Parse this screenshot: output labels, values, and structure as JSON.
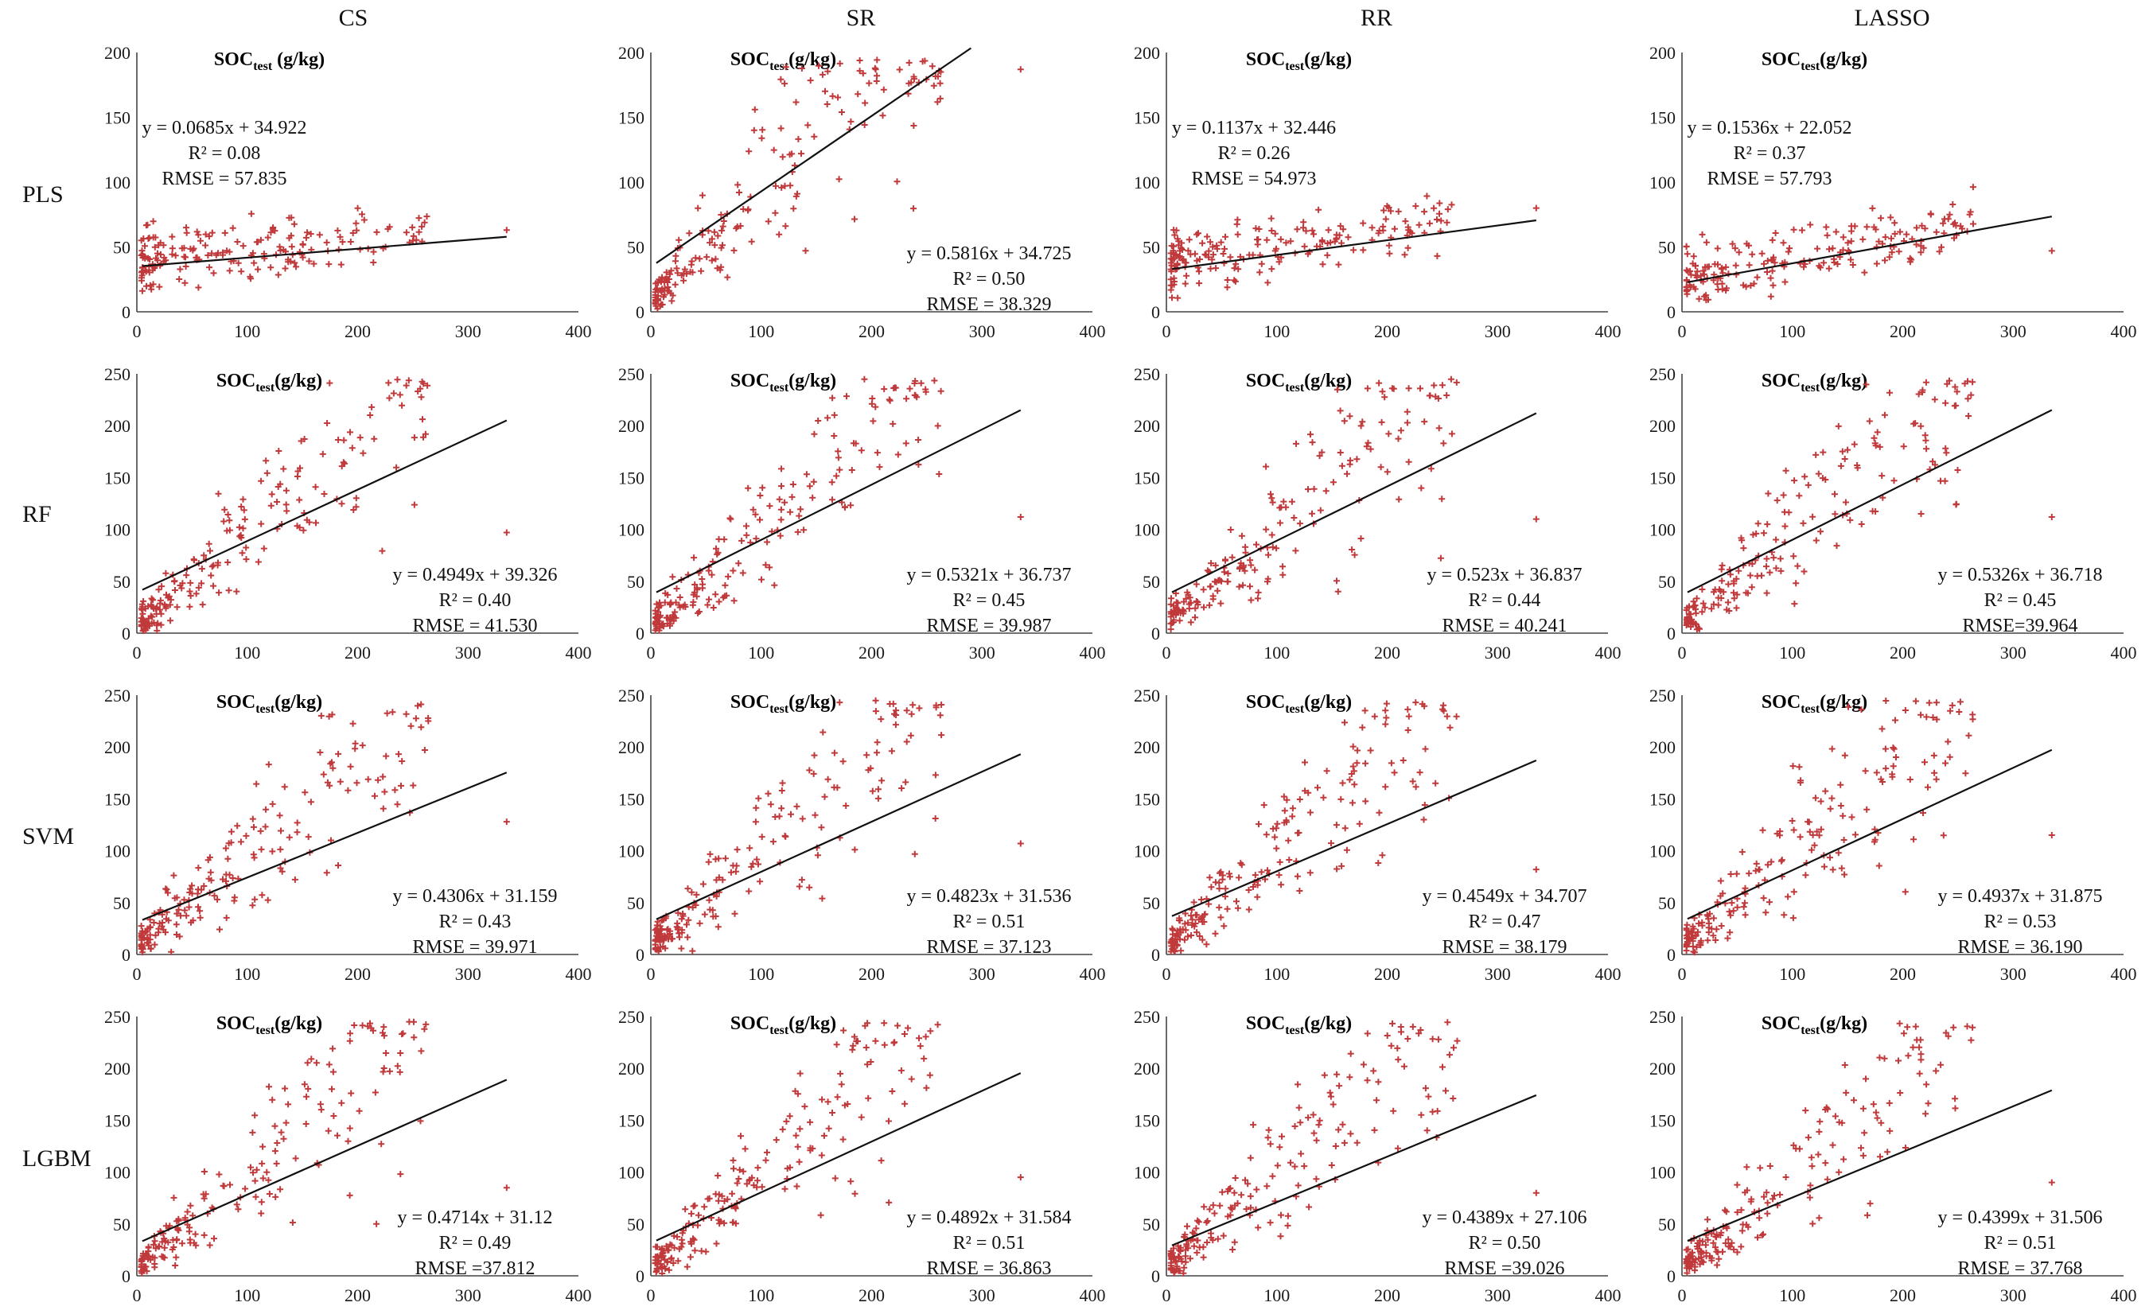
{
  "figure": {
    "columns": [
      "CS",
      "SR",
      "RR",
      "LASSO"
    ],
    "rows": [
      "PLS",
      "RF",
      "SVM",
      "LGBM"
    ],
    "colors": {
      "points": "#c0393b",
      "fit_line": "#111111",
      "axis": "#444444"
    }
  },
  "chart_data": [
    {
      "type": "scatter",
      "row": "PLS",
      "column": "CS",
      "title": "SOC",
      "title_sub": "test",
      "title_suffix": " (g/kg)",
      "xlim": [
        0,
        400
      ],
      "ylim": [
        0,
        200
      ],
      "xticks": [
        0,
        100,
        200,
        300,
        400
      ],
      "yticks": [
        0,
        50,
        100,
        150,
        200
      ],
      "fit": {
        "slope": 0.0685,
        "intercept": 34.922
      },
      "x_end": 335,
      "annotation": [
        "y = 0.0685x + 34.922",
        "R² = 0.08",
        "RMSE = 57.835"
      ],
      "annotation_pos": "top-left",
      "outlier": [
        335,
        63
      ]
    },
    {
      "type": "scatter",
      "row": "PLS",
      "column": "SR",
      "title": "SOC",
      "title_sub": "test",
      "title_suffix": "(g/kg)",
      "xlim": [
        0,
        400
      ],
      "ylim": [
        0,
        200
      ],
      "xticks": [
        0,
        100,
        200,
        300,
        400
      ],
      "yticks": [
        0,
        50,
        100,
        150,
        200
      ],
      "fit": {
        "slope": 0.5816,
        "intercept": 34.725
      },
      "x_end": 290,
      "annotation": [
        "y = 0.5816x + 34.725",
        "R² = 0.50",
        "RMSE = 38.329"
      ],
      "annotation_pos": "bottom-right",
      "outlier": [
        335,
        187
      ]
    },
    {
      "type": "scatter",
      "row": "PLS",
      "column": "RR",
      "title": "SOC",
      "title_sub": "test",
      "title_suffix": "(g/kg)",
      "xlim": [
        0,
        400
      ],
      "ylim": [
        0,
        200
      ],
      "xticks": [
        0,
        100,
        200,
        300,
        400
      ],
      "yticks": [
        0,
        50,
        100,
        150,
        200
      ],
      "fit": {
        "slope": 0.1137,
        "intercept": 32.446
      },
      "x_end": 335,
      "annotation": [
        "y = 0.1137x + 32.446",
        "R² = 0.26",
        "RMSE = 54.973"
      ],
      "annotation_pos": "top-left",
      "outlier": [
        335,
        80
      ]
    },
    {
      "type": "scatter",
      "row": "PLS",
      "column": "LASSO",
      "title": "SOC",
      "title_sub": "test",
      "title_suffix": "(g/kg)",
      "xlim": [
        0,
        400
      ],
      "ylim": [
        0,
        200
      ],
      "xticks": [
        0,
        100,
        200,
        300,
        400
      ],
      "yticks": [
        0,
        50,
        100,
        150,
        200
      ],
      "fit": {
        "slope": 0.1536,
        "intercept": 22.052
      },
      "x_end": 335,
      "annotation": [
        "y = 0.1536x + 22.052",
        "R² = 0.37",
        "RMSE = 57.793"
      ],
      "annotation_pos": "top-left",
      "outlier": [
        335,
        47
      ]
    },
    {
      "type": "scatter",
      "row": "RF",
      "column": "CS",
      "title": "SOC",
      "title_sub": "test",
      "title_suffix": "(g/kg)",
      "xlim": [
        0,
        400
      ],
      "ylim": [
        0,
        250
      ],
      "xticks": [
        0,
        100,
        200,
        300,
        400
      ],
      "yticks": [
        0,
        50,
        100,
        150,
        200,
        250
      ],
      "fit": {
        "slope": 0.4949,
        "intercept": 39.326
      },
      "x_end": 335,
      "annotation": [
        "y = 0.4949x + 39.326",
        "R² = 0.40",
        "RMSE = 41.530"
      ],
      "annotation_pos": "bottom-right",
      "outlier": [
        335,
        97
      ]
    },
    {
      "type": "scatter",
      "row": "RF",
      "column": "SR",
      "title": "SOC",
      "title_sub": "test",
      "title_suffix": "(g/kg)",
      "xlim": [
        0,
        400
      ],
      "ylim": [
        0,
        250
      ],
      "xticks": [
        0,
        100,
        200,
        300,
        400
      ],
      "yticks": [
        0,
        50,
        100,
        150,
        200,
        250
      ],
      "fit": {
        "slope": 0.5321,
        "intercept": 36.737
      },
      "x_end": 335,
      "annotation": [
        "y = 0.5321x + 36.737",
        "R² = 0.45",
        "RMSE = 39.987"
      ],
      "annotation_pos": "bottom-right",
      "outlier": [
        335,
        112
      ]
    },
    {
      "type": "scatter",
      "row": "RF",
      "column": "RR",
      "title": "SOC",
      "title_sub": "test",
      "title_suffix": "(g/kg)",
      "xlim": [
        0,
        400
      ],
      "ylim": [
        0,
        250
      ],
      "xticks": [
        0,
        100,
        200,
        300,
        400
      ],
      "yticks": [
        0,
        50,
        100,
        150,
        200,
        250
      ],
      "fit": {
        "slope": 0.523,
        "intercept": 36.837
      },
      "x_end": 335,
      "annotation": [
        "y = 0.523x + 36.837",
        "R² = 0.44",
        "RMSE = 40.241"
      ],
      "annotation_pos": "bottom-right",
      "outlier": [
        335,
        110
      ]
    },
    {
      "type": "scatter",
      "row": "RF",
      "column": "LASSO",
      "title": "SOC",
      "title_sub": "test",
      "title_suffix": "(g/kg)",
      "xlim": [
        0,
        400
      ],
      "ylim": [
        0,
        250
      ],
      "xticks": [
        0,
        100,
        200,
        300,
        400
      ],
      "yticks": [
        0,
        50,
        100,
        150,
        200,
        250
      ],
      "fit": {
        "slope": 0.5326,
        "intercept": 36.718
      },
      "x_end": 335,
      "annotation": [
        "y = 0.5326x + 36.718",
        "R² = 0.45",
        "RMSE=39.964"
      ],
      "annotation_pos": "bottom-right",
      "outlier": [
        335,
        112
      ]
    },
    {
      "type": "scatter",
      "row": "SVM",
      "column": "CS",
      "title": "SOC",
      "title_sub": "test",
      "title_suffix": "(g/kg)",
      "xlim": [
        0,
        400
      ],
      "ylim": [
        0,
        250
      ],
      "xticks": [
        0,
        100,
        200,
        300,
        400
      ],
      "yticks": [
        0,
        50,
        100,
        150,
        200,
        250
      ],
      "fit": {
        "slope": 0.4306,
        "intercept": 31.159
      },
      "x_end": 335,
      "annotation": [
        "y = 0.4306x + 31.159",
        "R² = 0.43",
        "RMSE = 39.971"
      ],
      "annotation_pos": "bottom-right",
      "outlier": [
        335,
        128
      ]
    },
    {
      "type": "scatter",
      "row": "SVM",
      "column": "SR",
      "title": "SOC",
      "title_sub": "test",
      "title_suffix": "(g/kg)",
      "xlim": [
        0,
        400
      ],
      "ylim": [
        0,
        250
      ],
      "xticks": [
        0,
        100,
        200,
        300,
        400
      ],
      "yticks": [
        0,
        50,
        100,
        150,
        200,
        250
      ],
      "fit": {
        "slope": 0.4823,
        "intercept": 31.536
      },
      "x_end": 335,
      "annotation": [
        "y = 0.4823x + 31.536",
        "R² = 0.51",
        "RMSE = 37.123"
      ],
      "annotation_pos": "bottom-right",
      "outlier": [
        335,
        107
      ]
    },
    {
      "type": "scatter",
      "row": "SVM",
      "column": "RR",
      "title": "SOC",
      "title_sub": "test",
      "title_suffix": "(g/kg)",
      "xlim": [
        0,
        400
      ],
      "ylim": [
        0,
        250
      ],
      "xticks": [
        0,
        100,
        200,
        300,
        400
      ],
      "yticks": [
        0,
        50,
        100,
        150,
        200,
        250
      ],
      "fit": {
        "slope": 0.4549,
        "intercept": 34.707
      },
      "x_end": 335,
      "annotation": [
        "y = 0.4549x + 34.707",
        "R² = 0.47",
        "RMSE = 38.179"
      ],
      "annotation_pos": "bottom-right",
      "outlier": [
        335,
        82
      ]
    },
    {
      "type": "scatter",
      "row": "SVM",
      "column": "LASSO",
      "title": "SOC",
      "title_sub": "test",
      "title_suffix": "(g/kg)",
      "xlim": [
        0,
        400
      ],
      "ylim": [
        0,
        250
      ],
      "xticks": [
        0,
        100,
        200,
        300,
        400
      ],
      "yticks": [
        0,
        50,
        100,
        150,
        200,
        250
      ],
      "fit": {
        "slope": 0.4937,
        "intercept": 31.875
      },
      "x_end": 335,
      "annotation": [
        "y = 0.4937x + 31.875",
        "R² = 0.53",
        "RMSE = 36.190"
      ],
      "annotation_pos": "bottom-right",
      "outlier": [
        335,
        115
      ]
    },
    {
      "type": "scatter",
      "row": "LGBM",
      "column": "CS",
      "title": "SOC",
      "title_sub": "test",
      "title_suffix": "(g/kg)",
      "xlim": [
        0,
        400
      ],
      "ylim": [
        0,
        250
      ],
      "xticks": [
        0,
        100,
        200,
        300,
        400
      ],
      "yticks": [
        0,
        50,
        100,
        150,
        200,
        250
      ],
      "fit": {
        "slope": 0.4714,
        "intercept": 31.12
      },
      "x_end": 335,
      "annotation": [
        "y = 0.4714x + 31.12",
        "R² = 0.49",
        "RMSE =37.812"
      ],
      "annotation_pos": "bottom-right",
      "outlier": [
        335,
        85
      ]
    },
    {
      "type": "scatter",
      "row": "LGBM",
      "column": "SR",
      "title": "SOC",
      "title_sub": "test",
      "title_suffix": "(g/kg)",
      "xlim": [
        0,
        400
      ],
      "ylim": [
        0,
        250
      ],
      "xticks": [
        0,
        100,
        200,
        300,
        400
      ],
      "yticks": [
        0,
        50,
        100,
        150,
        200,
        250
      ],
      "fit": {
        "slope": 0.4892,
        "intercept": 31.584
      },
      "x_end": 335,
      "annotation": [
        "y = 0.4892x + 31.584",
        "R² = 0.51",
        "RMSE = 36.863"
      ],
      "annotation_pos": "bottom-right",
      "outlier": [
        335,
        95
      ]
    },
    {
      "type": "scatter",
      "row": "LGBM",
      "column": "RR",
      "title": "SOC",
      "title_sub": "test",
      "title_suffix": "(g/kg)",
      "xlim": [
        0,
        400
      ],
      "ylim": [
        0,
        250
      ],
      "xticks": [
        0,
        100,
        200,
        300,
        400
      ],
      "yticks": [
        0,
        50,
        100,
        150,
        200,
        250
      ],
      "fit": {
        "slope": 0.4389,
        "intercept": 27.106
      },
      "x_end": 335,
      "annotation": [
        "y = 0.4389x + 27.106",
        "R² = 0.50",
        "RMSE =39.026"
      ],
      "annotation_pos": "bottom-right",
      "outlier": [
        335,
        80
      ]
    },
    {
      "type": "scatter",
      "row": "LGBM",
      "column": "LASSO",
      "title": "SOC",
      "title_sub": "test",
      "title_suffix": "(g/kg)",
      "xlim": [
        0,
        400
      ],
      "ylim": [
        0,
        250
      ],
      "xticks": [
        0,
        100,
        200,
        300,
        400
      ],
      "yticks": [
        0,
        50,
        100,
        150,
        200,
        250
      ],
      "fit": {
        "slope": 0.4399,
        "intercept": 31.506
      },
      "x_end": 335,
      "annotation": [
        "y = 0.4399x + 31.506",
        "R² = 0.51",
        "RMSE = 37.768"
      ],
      "annotation_pos": "bottom-right",
      "outlier": [
        335,
        90
      ]
    }
  ]
}
